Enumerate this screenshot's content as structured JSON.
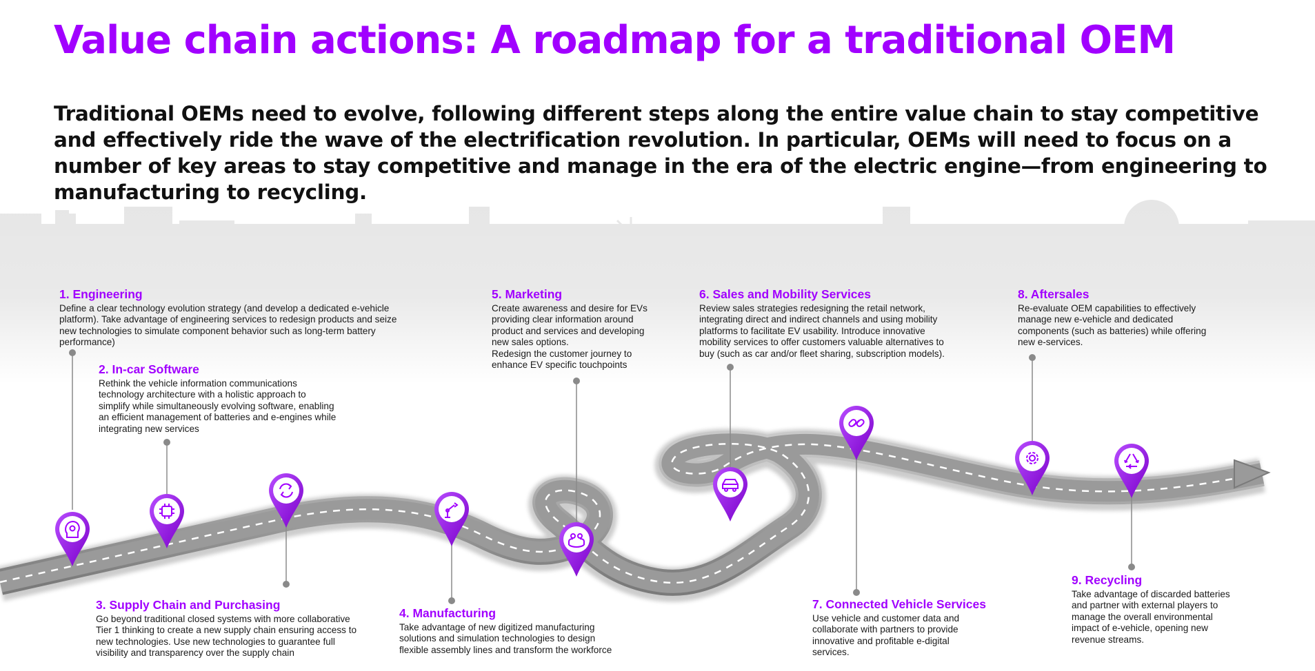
{
  "title": "Value chain actions: A roadmap for a traditional OEM",
  "intro": "Traditional OEMs need to evolve, following different steps along the entire value chain to stay competitive and effectively ride the wave of the electrification revolution. In particular, OEMs will need to focus on a number of key areas to stay competitive and manage in the era of the electric engine—from engineering to manufacturing to recycling.",
  "colors": {
    "accent": "#a100ff",
    "road": "#8f8f8f",
    "skyline": "#e3e3e3",
    "connector": "#8a8a8a"
  },
  "steps": [
    {
      "title": "1. Engineering",
      "text": "Define a clear technology evolution strategy (and develop a dedicated e-vehicle\nplatform). Take advantage of engineering services to redesign products and seize\nnew technologies to simulate component behavior such as long-term battery\nperformance)",
      "icon": "brain-gear-icon"
    },
    {
      "title": "2. In-car Software",
      "text": "Rethink the vehicle information communications\ntechnology architecture with a holistic approach to\nsimplify while simultaneously evolving software, enabling\nan efficient management of batteries and e-engines while\nintegrating new services",
      "icon": "chip-icon"
    },
    {
      "title": "3. Supply Chain and Purchasing",
      "text": "Go beyond traditional closed systems with more collaborative\nTier 1 thinking to create a new supply chain ensuring access to\nnew technologies. Use new technologies to guarantee full\nvisibility and transparency over the supply chain",
      "icon": "exchange-arrows-icon"
    },
    {
      "title": "4. Manufacturing",
      "text": "Take advantage of new digitized manufacturing\nsolutions and simulation technologies to design\nflexible assembly lines and transform the workforce",
      "icon": "robot-arm-icon"
    },
    {
      "title": "5. Marketing",
      "text": "Create awareness and desire for EVs\nproviding clear information around\nproduct and services and developing\nnew sales options.\nRedesign the customer journey to\nenhance EV specific touchpoints",
      "icon": "people-icon"
    },
    {
      "title": "6. Sales and Mobility Services",
      "text": "Review sales strategies redesigning the retail network,\nintegrating direct and indirect channels and using mobility\nplatforms to facilitate EV usability. Introduce innovative\nmobility services to offer customers valuable alternatives to\nbuy (such as car and/or fleet sharing, subscription models).",
      "icon": "car-icon"
    },
    {
      "title": "7. Connected Vehicle Services",
      "text": "Use vehicle and customer data and\ncollaborate with partners to provide\ninnovative and profitable e-digital\nservices.",
      "icon": "link-icon"
    },
    {
      "title": "8. Aftersales",
      "text": "Re-evaluate OEM capabilities to effectively\nmanage new e-vehicle and dedicated\ncomponents (such as batteries) while offering\nnew e-services.",
      "icon": "gear-icon"
    },
    {
      "title": "9. Recycling",
      "text": "Take advantage of discarded batteries\nand partner with external players to\nmanage the overall environmental\nimpact of e-vehicle, opening new\nrevenue streams.",
      "icon": "recycle-icon"
    }
  ]
}
